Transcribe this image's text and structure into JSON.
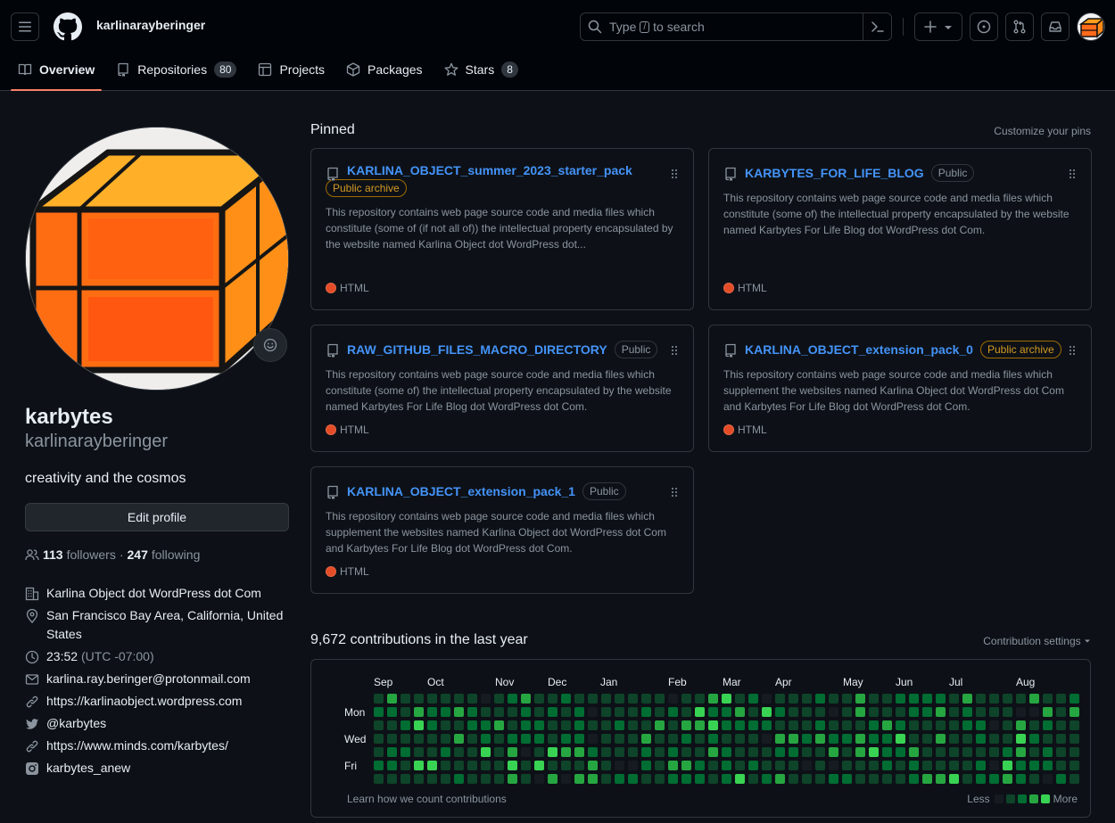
{
  "header": {
    "username": "karlinarayberinger",
    "search_prefix": "Type",
    "search_key": "/",
    "search_suffix": "to search"
  },
  "tabs": [
    {
      "label": "Overview",
      "icon": "book-icon"
    },
    {
      "label": "Repositories",
      "count": "80",
      "icon": "repo-icon"
    },
    {
      "label": "Projects",
      "icon": "table-icon"
    },
    {
      "label": "Packages",
      "icon": "package-icon"
    },
    {
      "label": "Stars",
      "count": "8",
      "icon": "star-icon"
    }
  ],
  "profile": {
    "display_name": "karbytes",
    "login": "karlinarayberinger",
    "bio": "creativity and the cosmos",
    "edit_label": "Edit profile",
    "followers": "113",
    "followers_label": "followers",
    "following": "247",
    "following_label": "following",
    "separator": "·",
    "organization": "Karlina Object dot WordPress dot Com",
    "location": "San Francisco Bay Area, California, United States",
    "local_time": "23:52",
    "timezone": "(UTC -07:00)",
    "email": "karlina.ray.beringer@protonmail.com",
    "website": "https://karlinaobject.wordpress.com",
    "twitter": "@karbytes",
    "social_link": "https://www.minds.com/karbytes/",
    "instagram": "karbytes_anew"
  },
  "pinned": {
    "title": "Pinned",
    "customize_label": "Customize your pins",
    "cards": [
      {
        "name": "KARLINA_OBJECT_summer_2023_starter_pack",
        "badge": "Public archive",
        "archive": true,
        "description": "This repository contains web page source code and media files which constitute (some of (if not all of)) the intellectual property encapsulated by the website named Karlina Object dot WordPress dot...",
        "language": "HTML"
      },
      {
        "name": "KARBYTES_FOR_LIFE_BLOG",
        "badge": "Public",
        "archive": false,
        "description": "This repository contains web page source code and media files which constitute (some of) the intellectual property encapsulated by the website named Karbytes For Life Blog dot WordPress dot Com.",
        "language": "HTML"
      },
      {
        "name": "RAW_GITHUB_FILES_MACRO_DIRECTORY",
        "badge": "Public",
        "archive": false,
        "description": "This repository contains web page source code and media files which constitute (some of) the intellectual property encapsulated by the website named Karbytes For Life Blog dot WordPress dot Com.",
        "language": "HTML"
      },
      {
        "name": "KARLINA_OBJECT_extension_pack_0",
        "badge": "Public archive",
        "archive": true,
        "description": "This repository contains web page source code and media files which supplement the websites named Karlina Object dot WordPress dot Com and Karbytes For Life Blog dot WordPress dot Com.",
        "language": "HTML"
      },
      {
        "name": "KARLINA_OBJECT_extension_pack_1",
        "badge": "Public",
        "archive": false,
        "description": "This repository contains web page source code and media files which supplement the websites named Karlina Object dot WordPress dot Com and Karbytes For Life Blog dot WordPress dot Com.",
        "language": "HTML"
      }
    ]
  },
  "contributions": {
    "title": "9,672 contributions in the last year",
    "settings_label": "Contribution settings",
    "months": [
      "Sep",
      "Oct",
      "Nov",
      "Dec",
      "Jan",
      "Feb",
      "Mar",
      "Apr",
      "May",
      "Jun",
      "Jul",
      "Aug"
    ],
    "day_labels": [
      "Mon",
      "Wed",
      "Fri"
    ],
    "learn_label": "Learn how we count contributions",
    "less_label": "Less",
    "more_label": "More",
    "colors": [
      "#161b22",
      "#0e4429",
      "#006d32",
      "#26a641",
      "#39d353"
    ]
  },
  "colors": {
    "accent_link": "#4493f8",
    "tab_underline": "#f78166",
    "html_lang": "#e34c26",
    "archive_badge": "#d29922"
  }
}
